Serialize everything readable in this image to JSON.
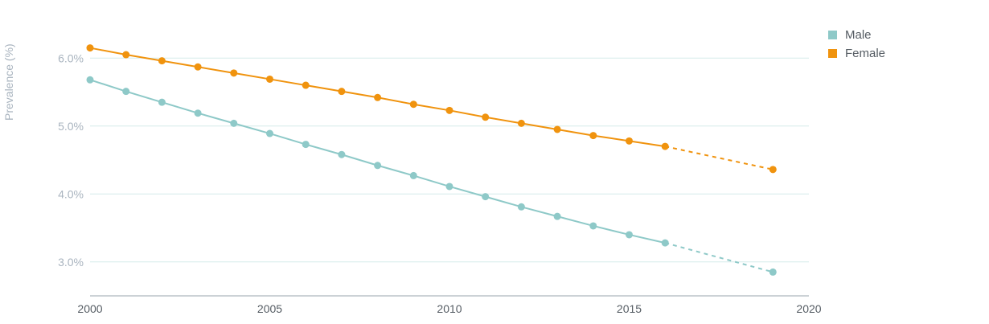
{
  "chart_data": {
    "type": "line",
    "ylabel": "Prevalence (%)",
    "xlabel": "",
    "xlim": [
      2000,
      2020
    ],
    "ylim": [
      2.5,
      6.5
    ],
    "x_ticks": [
      "2000",
      "2005",
      "2010",
      "2015",
      "2020"
    ],
    "y_ticks": [
      "3.0%",
      "4.0%",
      "5.0%",
      "6.0%"
    ],
    "y_tick_values": [
      3.0,
      4.0,
      5.0,
      6.0
    ],
    "grid": "horizontal",
    "legend_position": "top-right",
    "projection_style": "dashed segment from 2016 to 2019",
    "series": [
      {
        "name": "Male",
        "color": "#8ec9c8",
        "x": [
          2000,
          2001,
          2002,
          2003,
          2004,
          2005,
          2006,
          2007,
          2008,
          2009,
          2010,
          2011,
          2012,
          2013,
          2014,
          2015,
          2016,
          2019
        ],
        "values": [
          5.68,
          5.51,
          5.35,
          5.19,
          5.04,
          4.89,
          4.73,
          4.58,
          4.42,
          4.27,
          4.11,
          3.96,
          3.81,
          3.67,
          3.53,
          3.4,
          3.28,
          2.85
        ]
      },
      {
        "name": "Female",
        "color": "#f0930e",
        "x": [
          2000,
          2001,
          2002,
          2003,
          2004,
          2005,
          2006,
          2007,
          2008,
          2009,
          2010,
          2011,
          2012,
          2013,
          2014,
          2015,
          2016,
          2019
        ],
        "values": [
          6.15,
          6.05,
          5.96,
          5.87,
          5.78,
          5.69,
          5.6,
          5.51,
          5.42,
          5.32,
          5.23,
          5.13,
          5.04,
          4.95,
          4.86,
          4.78,
          4.7,
          4.36
        ]
      }
    ]
  }
}
